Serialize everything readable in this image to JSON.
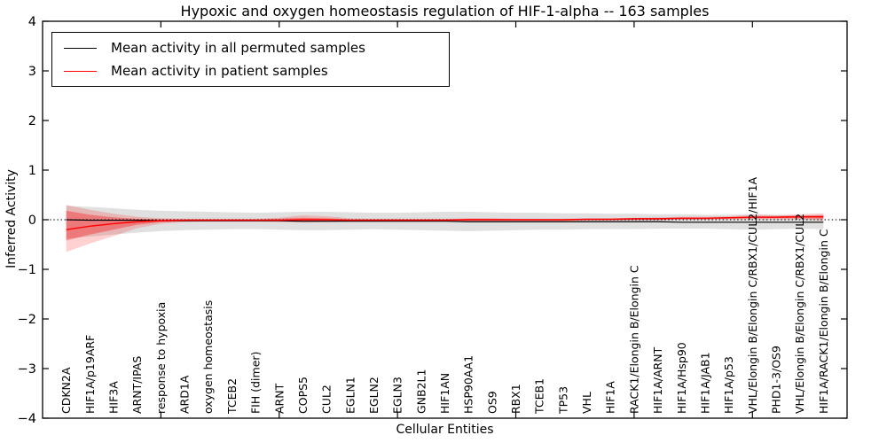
{
  "chart_data": {
    "type": "line",
    "title": "Hypoxic and oxygen homeostasis regulation of HIF-1-alpha -- 163 samples",
    "xlabel": "Cellular Entities",
    "ylabel": "Inferred Activity",
    "xlim": [
      0,
      34
    ],
    "ylim": [
      -4,
      4
    ],
    "yticks": [
      4,
      3,
      2,
      1,
      0,
      -1,
      -2,
      -3,
      -4
    ],
    "ytick_labels": [
      "4",
      "3",
      "2",
      "1",
      "0",
      "−1",
      "−2",
      "−3",
      "−4"
    ],
    "xticks": [
      5,
      10,
      15,
      20,
      25,
      30
    ],
    "grid": false,
    "legend": {
      "position": "upper-left",
      "entries": [
        {
          "label": "Mean activity in all permuted samples",
          "color": "#000000"
        },
        {
          "label": "Mean activity in patient samples",
          "color": "#ff0000"
        }
      ]
    },
    "categories": [
      "CDKN2A",
      "HIF1A/p19ARF",
      "HIF3A",
      "ARNT/IPAS",
      "response to hypoxia",
      "ARD1A",
      "oxygen homeostasis",
      "TCEB2",
      "FIH (dimer)",
      "ARNT",
      "COPS5",
      "CUL2",
      "EGLN1",
      "EGLN2",
      "EGLN3",
      "GNB2L1",
      "HIF1AN",
      "HSP90AA1",
      "OS9",
      "RBX1",
      "TCEB1",
      "TP53",
      "VHL",
      "HIF1A",
      "RACK1/Elongin B/Elongin C",
      "HIF1A/ARNT",
      "HIF1A/Hsp90",
      "HIF1A/JAB1",
      "HIF1A/p53",
      "VHL/Elongin B/Elongin C/RBX1/CUL2/HIF1A",
      "PHD1-3/OS9",
      "VHL/Elongin B/Elongin C/RBX1/CUL2",
      "HIF1A/RACK1/Elongin B/Elongin C"
    ],
    "series": [
      {
        "name": "Mean activity in all permuted samples",
        "color": "#000000",
        "values": [
          0.0,
          -0.01,
          -0.01,
          -0.01,
          -0.02,
          -0.02,
          -0.02,
          -0.02,
          -0.02,
          -0.02,
          -0.03,
          -0.03,
          -0.03,
          -0.03,
          -0.03,
          -0.03,
          -0.03,
          -0.04,
          -0.04,
          -0.04,
          -0.04,
          -0.04,
          -0.04,
          -0.04,
          -0.04,
          -0.04,
          -0.05,
          -0.05,
          -0.05,
          -0.05,
          -0.05,
          -0.05,
          -0.05
        ]
      },
      {
        "name": "Mean activity in patient samples",
        "color": "#ff0000",
        "values": [
          -0.2,
          -0.13,
          -0.08,
          -0.04,
          -0.02,
          -0.01,
          -0.01,
          -0.01,
          -0.01,
          -0.01,
          0.0,
          0.0,
          -0.01,
          -0.01,
          -0.01,
          -0.01,
          -0.01,
          0.0,
          0.0,
          0.0,
          0.0,
          0.0,
          0.01,
          0.01,
          0.02,
          0.02,
          0.03,
          0.03,
          0.04,
          0.05,
          0.05,
          0.06,
          0.06
        ]
      }
    ],
    "bands": [
      {
        "name": "permuted-range-band",
        "color": "rgba(0,0,0,0.12)",
        "top": [
          0.28,
          0.26,
          0.23,
          0.2,
          0.18,
          0.17,
          0.16,
          0.15,
          0.14,
          0.15,
          0.16,
          0.16,
          0.15,
          0.14,
          0.14,
          0.15,
          0.16,
          0.16,
          0.15,
          0.14,
          0.14,
          0.13,
          0.13,
          0.12,
          0.12,
          0.11,
          0.11,
          0.1,
          0.1,
          0.11,
          0.1,
          0.09,
          0.1
        ],
        "bottom": [
          -0.38,
          -0.34,
          -0.3,
          -0.26,
          -0.23,
          -0.21,
          -0.2,
          -0.19,
          -0.19,
          -0.2,
          -0.21,
          -0.21,
          -0.2,
          -0.19,
          -0.2,
          -0.21,
          -0.22,
          -0.23,
          -0.22,
          -0.21,
          -0.2,
          -0.2,
          -0.19,
          -0.19,
          -0.19,
          -0.18,
          -0.18,
          -0.18,
          -0.19,
          -0.2,
          -0.19,
          -0.18,
          -0.19
        ]
      },
      {
        "name": "patient-outer-band",
        "color": "rgba(255,0,0,0.18)",
        "top": [
          0.3,
          0.2,
          0.12,
          0.06,
          0.03,
          0.02,
          0.02,
          0.02,
          0.02,
          0.04,
          0.09,
          0.07,
          0.03,
          0.02,
          0.02,
          0.02,
          0.02,
          0.03,
          0.03,
          0.02,
          0.02,
          0.02,
          0.03,
          0.03,
          0.04,
          0.05,
          0.06,
          0.06,
          0.07,
          0.1,
          0.09,
          0.11,
          0.13
        ],
        "bottom": [
          -0.65,
          -0.48,
          -0.33,
          -0.17,
          -0.08,
          -0.05,
          -0.04,
          -0.04,
          -0.04,
          -0.05,
          -0.06,
          -0.05,
          -0.04,
          -0.04,
          -0.03,
          -0.03,
          -0.03,
          -0.04,
          -0.04,
          -0.03,
          -0.03,
          -0.03,
          -0.02,
          -0.02,
          -0.01,
          -0.01,
          0.0,
          0.0,
          0.01,
          0.01,
          0.01,
          0.01,
          -0.02
        ]
      },
      {
        "name": "patient-inner-band",
        "color": "rgba(255,0,0,0.33)",
        "top": [
          0.18,
          0.1,
          0.05,
          0.02,
          0.01,
          0.01,
          0.01,
          0.01,
          0.01,
          0.02,
          0.04,
          0.03,
          0.01,
          0.01,
          0.01,
          0.01,
          0.01,
          0.02,
          0.02,
          0.01,
          0.01,
          0.01,
          0.02,
          0.02,
          0.03,
          0.03,
          0.04,
          0.04,
          0.05,
          0.07,
          0.07,
          0.08,
          0.09
        ],
        "bottom": [
          -0.42,
          -0.3,
          -0.2,
          -0.1,
          -0.05,
          -0.03,
          -0.03,
          -0.03,
          -0.03,
          -0.03,
          -0.03,
          -0.03,
          -0.03,
          -0.02,
          -0.02,
          -0.02,
          -0.02,
          -0.02,
          -0.02,
          -0.02,
          -0.02,
          -0.02,
          -0.01,
          -0.01,
          0.0,
          0.0,
          0.01,
          0.01,
          0.02,
          0.03,
          0.03,
          0.03,
          0.02
        ]
      }
    ],
    "zero_line": {
      "y": 0,
      "style": "dotted",
      "color": "#000000"
    }
  }
}
